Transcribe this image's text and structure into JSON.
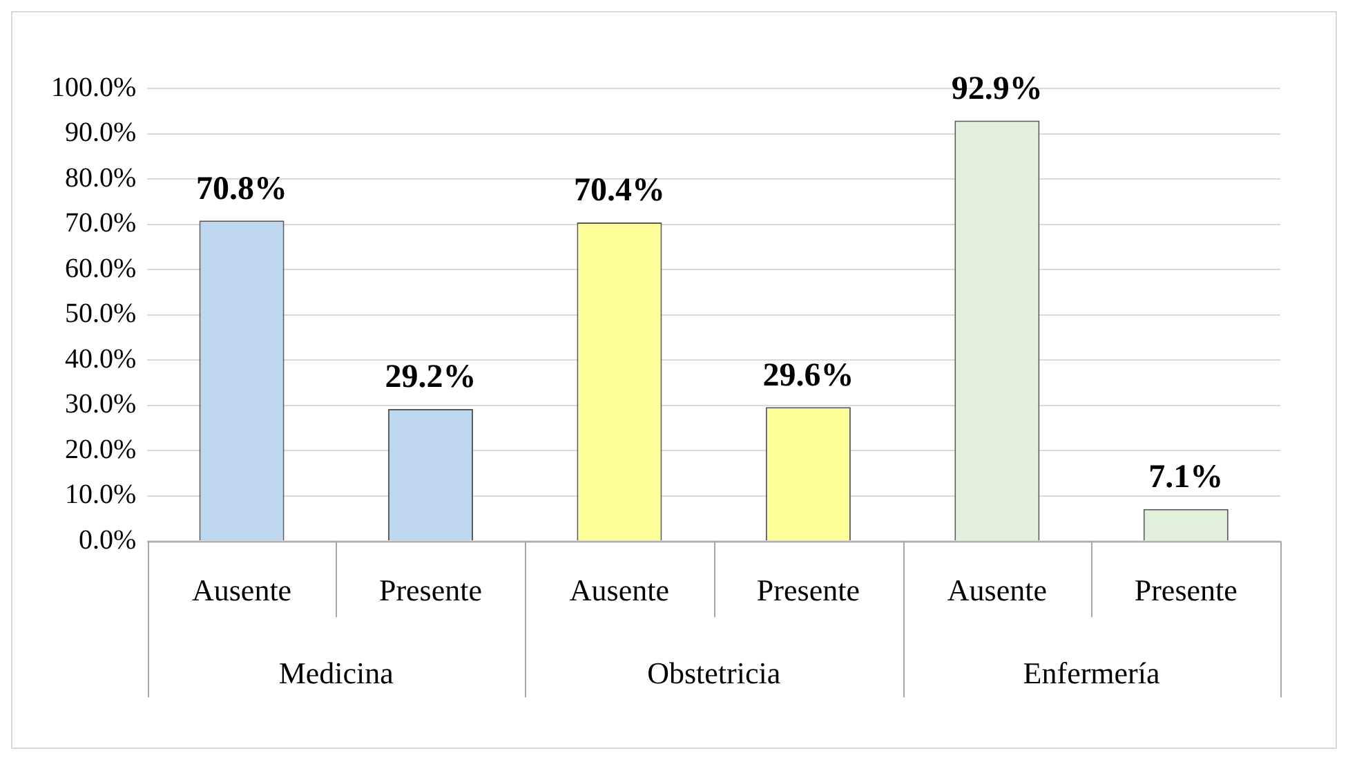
{
  "chart_data": {
    "type": "bar",
    "categories": [
      "Ausente",
      "Presente",
      "Ausente",
      "Presente",
      "Ausente",
      "Presente"
    ],
    "values": [
      70.8,
      29.2,
      70.4,
      29.6,
      92.9,
      7.1
    ],
    "value_labels": [
      "70.8%",
      "29.2%",
      "70.4%",
      "29.6%",
      "92.9%",
      "7.1%"
    ],
    "colors": [
      "#bdd7ee",
      "#bdd7ee",
      "#ffff99",
      "#ffff99",
      "#e2efda",
      "#e2efda"
    ],
    "annotations": [
      "Medicina",
      "Obstetricia",
      "Enfermería"
    ],
    "ylim": [
      0,
      100
    ],
    "yticks": [
      {
        "value": 0,
        "label": "0.0%"
      },
      {
        "value": 10,
        "label": "10.0%"
      },
      {
        "value": 20,
        "label": "20.0%"
      },
      {
        "value": 30,
        "label": "30.0%"
      },
      {
        "value": 40,
        "label": "40.0%"
      },
      {
        "value": 50,
        "label": "50.0%"
      },
      {
        "value": 60,
        "label": "60.0%"
      },
      {
        "value": 70,
        "label": "70.0%"
      },
      {
        "value": 80,
        "label": "80.0%"
      },
      {
        "value": 90,
        "label": "90.0%"
      },
      {
        "value": 100,
        "label": "100.0%"
      }
    ],
    "grid": "y",
    "legend": false
  }
}
